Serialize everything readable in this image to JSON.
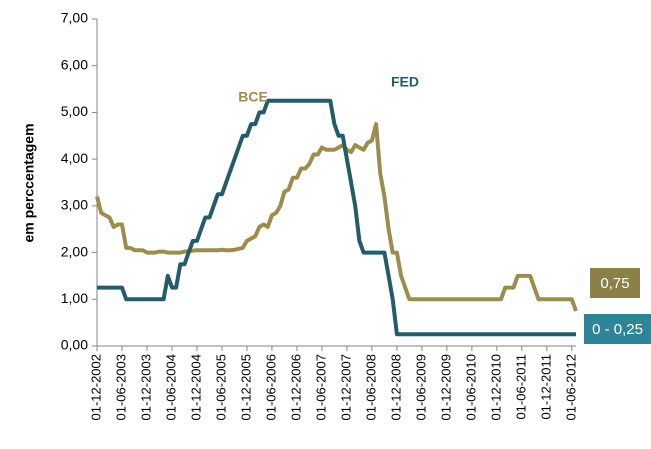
{
  "chart_data": {
    "type": "line",
    "y_label": "em perccentagem",
    "x": [
      "01-12-2002",
      "01-01-2003",
      "01-02-2003",
      "01-03-2003",
      "01-04-2003",
      "01-05-2003",
      "01-06-2003",
      "01-07-2003",
      "01-08-2003",
      "01-09-2003",
      "01-10-2003",
      "01-11-2003",
      "01-12-2003",
      "01-01-2004",
      "01-02-2004",
      "01-03-2004",
      "01-04-2004",
      "01-05-2004",
      "01-06-2004",
      "01-07-2004",
      "01-08-2004",
      "01-09-2004",
      "01-10-2004",
      "01-11-2004",
      "01-12-2004",
      "01-01-2005",
      "01-02-2005",
      "01-03-2005",
      "01-04-2005",
      "01-05-2005",
      "01-06-2005",
      "01-07-2005",
      "01-08-2005",
      "01-09-2005",
      "01-10-2005",
      "01-11-2005",
      "01-12-2005",
      "01-01-2006",
      "01-02-2006",
      "01-03-2006",
      "01-04-2006",
      "01-05-2006",
      "01-06-2006",
      "01-07-2006",
      "01-08-2006",
      "01-09-2006",
      "01-10-2006",
      "01-11-2006",
      "01-12-2006",
      "01-01-2007",
      "01-02-2007",
      "01-03-2007",
      "01-04-2007",
      "01-05-2007",
      "01-06-2007",
      "01-07-2007",
      "01-08-2007",
      "01-09-2007",
      "01-10-2007",
      "01-11-2007",
      "01-12-2007",
      "01-01-2008",
      "01-02-2008",
      "01-03-2008",
      "01-04-2008",
      "01-05-2008",
      "01-06-2008",
      "01-07-2008",
      "01-08-2008",
      "01-09-2008",
      "01-10-2008",
      "01-11-2008",
      "01-12-2008",
      "01-01-2009",
      "01-02-2009",
      "01-03-2009",
      "01-04-2009",
      "01-05-2009",
      "01-06-2009",
      "01-07-2009",
      "01-08-2009",
      "01-09-2009",
      "01-10-2009",
      "01-11-2009",
      "01-12-2009",
      "01-01-2010",
      "01-02-2010",
      "01-03-2010",
      "01-04-2010",
      "01-05-2010",
      "01-06-2010",
      "01-07-2010",
      "01-08-2010",
      "01-09-2010",
      "01-10-2010",
      "01-11-2010",
      "01-12-2010",
      "01-01-2011",
      "01-02-2011",
      "01-03-2011",
      "01-04-2011",
      "01-05-2011",
      "01-06-2011",
      "01-07-2011",
      "01-08-2011",
      "01-09-2011",
      "01-10-2011",
      "01-11-2011",
      "01-12-2011",
      "01-01-2012",
      "01-02-2012",
      "01-03-2012",
      "01-04-2012",
      "01-05-2012",
      "01-06-2012",
      "01-07-2012"
    ],
    "xlim": [
      "01-12-2002",
      "01-07-2012"
    ],
    "xticks": [
      "01-12-2002",
      "01-06-2003",
      "01-12-2003",
      "01-06-2004",
      "01-12-2004",
      "01-06-2005",
      "01-12-2005",
      "01-06-2006",
      "01-12-2006",
      "01-06-2007",
      "01-12-2007",
      "01-06-2008",
      "01-12-2008",
      "01-06-2009",
      "01-12-2009",
      "01-06-2010",
      "01-12-2010",
      "01-06-2011",
      "01-12-2011",
      "01-06-2012"
    ],
    "ylim": [
      0,
      7
    ],
    "yticks": [
      {
        "value": 0,
        "label": "0,00"
      },
      {
        "value": 1,
        "label": "1,00"
      },
      {
        "value": 2,
        "label": "2,00"
      },
      {
        "value": 3,
        "label": "3,00"
      },
      {
        "value": 4,
        "label": "4,00"
      },
      {
        "value": 5,
        "label": "5,00"
      },
      {
        "value": 6,
        "label": "6,00"
      },
      {
        "value": 7,
        "label": "7,00"
      }
    ],
    "series": [
      {
        "name": "BCE",
        "color": "#9a8d4e",
        "end_label": "0,75",
        "end_label_color": "#8c8049",
        "values": [
          3.2,
          2.85,
          2.8,
          2.75,
          2.55,
          2.6,
          2.6,
          2.1,
          2.1,
          2.05,
          2.05,
          2.05,
          2.0,
          2.0,
          2.0,
          2.02,
          2.02,
          2.0,
          2.0,
          2.0,
          2.0,
          2.02,
          2.03,
          2.04,
          2.05,
          2.05,
          2.05,
          2.05,
          2.05,
          2.05,
          2.06,
          2.05,
          2.05,
          2.06,
          2.08,
          2.1,
          2.25,
          2.3,
          2.35,
          2.55,
          2.6,
          2.55,
          2.8,
          2.85,
          3.0,
          3.3,
          3.35,
          3.6,
          3.6,
          3.8,
          3.8,
          3.9,
          4.1,
          4.1,
          4.25,
          4.2,
          4.2,
          4.2,
          4.25,
          4.3,
          4.2,
          4.15,
          4.3,
          4.25,
          4.2,
          4.35,
          4.4,
          4.75,
          3.7,
          3.2,
          2.5,
          2.0,
          2.0,
          1.5,
          1.25,
          1.0,
          1.0,
          1.0,
          1.0,
          1.0,
          1.0,
          1.0,
          1.0,
          1.0,
          1.0,
          1.0,
          1.0,
          1.0,
          1.0,
          1.0,
          1.0,
          1.0,
          1.0,
          1.0,
          1.0,
          1.0,
          1.0,
          1.0,
          1.25,
          1.25,
          1.25,
          1.5,
          1.5,
          1.5,
          1.5,
          1.25,
          1.0,
          1.0,
          1.0,
          1.0,
          1.0,
          1.0,
          1.0,
          1.0,
          1.0,
          0.75
        ]
      },
      {
        "name": "FED",
        "color": "#245c69",
        "end_label": "0 - 0,25",
        "end_label_color": "#2f8597",
        "values": [
          1.25,
          1.25,
          1.25,
          1.25,
          1.25,
          1.25,
          1.25,
          1.0,
          1.0,
          1.0,
          1.0,
          1.0,
          1.0,
          1.0,
          1.0,
          1.0,
          1.0,
          1.5,
          1.25,
          1.25,
          1.75,
          1.75,
          2.0,
          2.25,
          2.25,
          2.5,
          2.75,
          2.75,
          3.0,
          3.25,
          3.25,
          3.5,
          3.75,
          4.0,
          4.25,
          4.5,
          4.5,
          4.75,
          4.75,
          5.0,
          5.0,
          5.25,
          5.25,
          5.25,
          5.25,
          5.25,
          5.25,
          5.25,
          5.25,
          5.25,
          5.25,
          5.25,
          5.25,
          5.25,
          5.25,
          5.25,
          5.25,
          4.75,
          4.5,
          4.5,
          4.0,
          3.5,
          3.0,
          2.25,
          2.0,
          2.0,
          2.0,
          2.0,
          2.0,
          2.0,
          1.5,
          1.0,
          0.25,
          0.25,
          0.25,
          0.25,
          0.25,
          0.25,
          0.25,
          0.25,
          0.25,
          0.25,
          0.25,
          0.25,
          0.25,
          0.25,
          0.25,
          0.25,
          0.25,
          0.25,
          0.25,
          0.25,
          0.25,
          0.25,
          0.25,
          0.25,
          0.25,
          0.25,
          0.25,
          0.25,
          0.25,
          0.25,
          0.25,
          0.25,
          0.25,
          0.25,
          0.25,
          0.25,
          0.25,
          0.25,
          0.25,
          0.25,
          0.25,
          0.25,
          0.25,
          0.25
        ]
      }
    ]
  }
}
